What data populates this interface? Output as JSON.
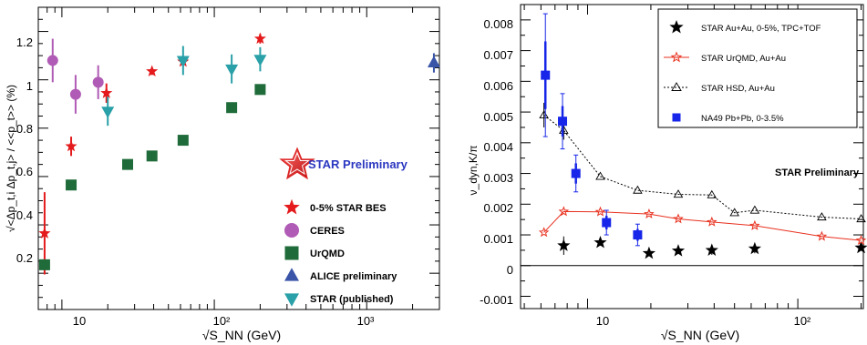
{
  "chart_data": [
    {
      "type": "scatter",
      "x_scale": "log",
      "xlabel": "√S_NN (GeV)",
      "ylabel": "√<Δp_t,i Δp_t,j> / <<p_t>> (%)",
      "xlim": [
        7,
        3000
      ],
      "ylim": [
        0.05,
        1.3
      ],
      "x_ticks": [
        "10",
        "10²",
        "10³"
      ],
      "y_ticks": [
        "0.2",
        "0.4",
        "0.6",
        "0.8",
        "1",
        "1.2"
      ],
      "annotation": "STAR Preliminary",
      "legend_position": "bottom-right",
      "series": [
        {
          "name": "0-5% STAR BES",
          "marker": "star",
          "color": "#e41a1c",
          "x": [
            7.7,
            11.5,
            19.6,
            39,
            62.4,
            200
          ],
          "y": [
            0.365,
            0.725,
            0.945,
            1.035,
            1.075,
            1.17
          ],
          "err": [
            0.17,
            0.04,
            0.04,
            0.015,
            0.015,
            0.02
          ]
        },
        {
          "name": "CERES",
          "marker": "circle",
          "color": "#b05bb5",
          "x": [
            8.7,
            12.3,
            17.3
          ],
          "y": [
            1.08,
            0.94,
            0.99
          ],
          "err": [
            0.09,
            0.08,
            0.07
          ]
        },
        {
          "name": "UrQMD",
          "marker": "square",
          "color": "#1f6b3a",
          "x": [
            7.7,
            11.5,
            27,
            39,
            62.4,
            130,
            200
          ],
          "y": [
            0.235,
            0.565,
            0.65,
            0.685,
            0.75,
            0.885,
            0.96
          ],
          "err": [
            0,
            0,
            0,
            0,
            0,
            0,
            0
          ]
        },
        {
          "name": "ALICE preliminary",
          "marker": "triangle-up",
          "color": "#3a55a8",
          "x": [
            2760
          ],
          "y": [
            1.07
          ],
          "err": [
            0.04
          ]
        },
        {
          "name": "STAR (published)",
          "marker": "triangle-down",
          "color": "#2aa0a8",
          "x": [
            20,
            62.4,
            130,
            200
          ],
          "y": [
            0.87,
            1.08,
            1.045,
            1.085
          ],
          "err": [
            0.06,
            0.06,
            0.06,
            0.05
          ]
        }
      ]
    },
    {
      "type": "scatter",
      "x_scale": "log",
      "xlabel": "√S_NN (GeV)",
      "ylabel": "ν_dyn,K/π",
      "xlim": [
        4.8,
        205
      ],
      "ylim": [
        -0.0014,
        0.0085
      ],
      "x_ticks": [
        "10",
        "10²"
      ],
      "y_ticks": [
        "-0.001",
        "0",
        "0.001",
        "0.002",
        "0.003",
        "0.004",
        "0.005",
        "0.006",
        "0.007",
        "0.008"
      ],
      "annotation": "STAR Preliminary",
      "legend_position": "top-right",
      "series": [
        {
          "name": "STAR Au+Au, 0-5%, TPC+TOF",
          "marker": "star",
          "color": "#000000",
          "line": false,
          "x": [
            7.7,
            11.5,
            19.6,
            27,
            39,
            62.4,
            200
          ],
          "y": [
            0.00065,
            0.00075,
            0.0004,
            0.00048,
            0.0005,
            0.00055,
            0.00058
          ],
          "err": [
            0.0003,
            0.0001,
            5e-05,
            5e-05,
            0.00015,
            0.00015,
            5e-05
          ]
        },
        {
          "name": "STAR UrQMD, Au+Au",
          "marker": "star-open",
          "color": "#e8301e",
          "line": true,
          "x": [
            6.2,
            7.7,
            11.5,
            19.6,
            27,
            39,
            62.4,
            130,
            200
          ],
          "y": [
            0.00108,
            0.00176,
            0.00175,
            0.00168,
            0.00152,
            0.00142,
            0.0013,
            0.00095,
            0.00082
          ],
          "err": [
            0,
            0,
            0,
            0,
            0,
            0,
            0,
            0,
            0
          ]
        },
        {
          "name": "STAR HSD, Au+Au",
          "marker": "triangle-open",
          "color": "#000000",
          "line": true,
          "dashed": true,
          "x": [
            6.2,
            7.7,
            11.5,
            17.3,
            27,
            39,
            50,
            62.4,
            130,
            200
          ],
          "y": [
            0.0049,
            0.0044,
            0.0029,
            0.00245,
            0.00232,
            0.0023,
            0.00172,
            0.0018,
            0.00158,
            0.00152
          ],
          "err": [
            0.0004,
            0.0003,
            0,
            0,
            0,
            0,
            0,
            0,
            0,
            0
          ]
        },
        {
          "name": "NA49 Pb+Pb, 0-3.5%",
          "marker": "square",
          "color": "#1726e8",
          "line": false,
          "x": [
            6.3,
            7.6,
            8.8,
            12.3,
            17.3
          ],
          "y": [
            0.0062,
            0.0047,
            0.003,
            0.0014,
            0.001
          ],
          "err": [
            0.002,
            0.0009,
            0.0006,
            0.0004,
            0.00035
          ]
        }
      ]
    }
  ]
}
